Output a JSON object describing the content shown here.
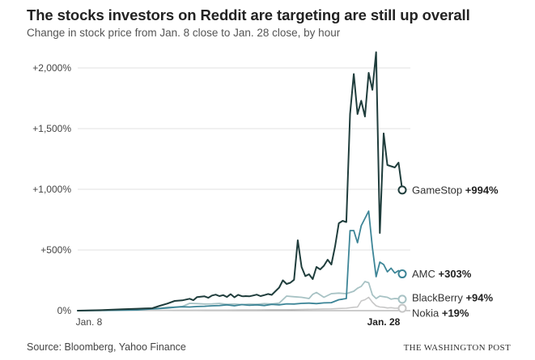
{
  "chart_data": {
    "type": "line",
    "title": "The stocks investors on Reddit are targeting are still up overall",
    "subtitle": "Change in stock price from Jan. 8 close to Jan. 28 close, by hour",
    "xlabel": "",
    "ylabel": "",
    "x_ticks": [
      "Jan. 8",
      "Jan. 28"
    ],
    "ylim": [
      0,
      2150
    ],
    "y_ticks": [
      {
        "value": 0,
        "label": "0%"
      },
      {
        "value": 500,
        "label": "+500%"
      },
      {
        "value": 1000,
        "label": "+1,000%"
      },
      {
        "value": 1500,
        "label": "+1,500%"
      },
      {
        "value": 2000,
        "label": "+2,000%"
      }
    ],
    "x": [
      0,
      6,
      12,
      16,
      18,
      20,
      22,
      24,
      26,
      28,
      30,
      31,
      32,
      34,
      35,
      36,
      37,
      38,
      39,
      40,
      41,
      42,
      43,
      44,
      44.5,
      45,
      46,
      47,
      48,
      49,
      50,
      51,
      52,
      53,
      54,
      55,
      56,
      57,
      58,
      59,
      60,
      61,
      62,
      63,
      64,
      65,
      66,
      67,
      68,
      69,
      70,
      71,
      72,
      73,
      74,
      75,
      76,
      77,
      78,
      79,
      80,
      81,
      82
    ],
    "series": [
      {
        "name": "GameStop",
        "end_label": "+994%",
        "color": "#1f3d3c",
        "width": 2,
        "values": [
          0,
          4,
          12,
          16,
          18,
          20,
          40,
          58,
          80,
          85,
          98,
          86,
          112,
          118,
          106,
          125,
          132,
          120,
          128,
          113,
          136,
          110,
          131,
          119,
          118,
          120,
          118,
          125,
          132,
          120,
          128,
          137,
          130,
          160,
          190,
          250,
          220,
          230,
          255,
          580,
          360,
          285,
          300,
          260,
          360,
          340,
          370,
          420,
          380,
          530,
          720,
          740,
          730,
          1620,
          1950,
          1620,
          1730,
          1600,
          1960,
          1820,
          2130,
          640,
          1460
        ]
      },
      {
        "name": "GameStop-late",
        "color": "#1f3d3c",
        "width": 2,
        "x": [
          82,
          83,
          84,
          85,
          86,
          87
        ],
        "values": [
          1460,
          1200,
          1190,
          1180,
          1220,
          994
        ]
      },
      {
        "name": "AMC",
        "end_label": "+303%",
        "color": "#3d8597",
        "width": 1.8,
        "x": [
          0,
          6,
          12,
          16,
          18,
          20,
          22,
          24,
          26,
          28,
          30,
          32,
          34,
          36,
          38,
          40,
          42,
          44,
          46,
          48,
          50,
          52,
          54,
          56,
          58,
          60,
          62,
          64,
          66,
          68,
          70,
          71,
          72,
          73,
          74,
          75,
          76,
          77,
          78,
          79,
          80,
          81,
          82,
          83,
          84,
          85,
          86,
          87
        ],
        "values": [
          0,
          2,
          4,
          6,
          10,
          14,
          18,
          22,
          28,
          32,
          30,
          34,
          36,
          40,
          42,
          48,
          40,
          50,
          44,
          48,
          42,
          52,
          48,
          56,
          55,
          60,
          62,
          58,
          64,
          66,
          90,
          95,
          100,
          660,
          660,
          560,
          700,
          760,
          820,
          520,
          280,
          400,
          380,
          320,
          350,
          310,
          330,
          303
        ]
      },
      {
        "name": "BlackBerry",
        "end_label": "+94%",
        "color": "#a7c2c4",
        "width": 1.8,
        "x": [
          0,
          6,
          12,
          16,
          18,
          20,
          22,
          24,
          26,
          28,
          30,
          32,
          34,
          36,
          38,
          40,
          42,
          44,
          46,
          48,
          50,
          52,
          54,
          56,
          58,
          60,
          62,
          63,
          64,
          66,
          68,
          70,
          72,
          73,
          74,
          75,
          76,
          77,
          78,
          79,
          80,
          81,
          82,
          83,
          84,
          85,
          86,
          87
        ],
        "values": [
          0,
          2,
          5,
          8,
          12,
          16,
          20,
          28,
          30,
          34,
          60,
          58,
          55,
          56,
          60,
          52,
          55,
          50,
          54,
          52,
          58,
          55,
          62,
          120,
          115,
          110,
          100,
          135,
          150,
          110,
          140,
          145,
          140,
          150,
          160,
          185,
          200,
          240,
          230,
          130,
          100,
          120,
          115,
          110,
          95,
          100,
          98,
          94
        ]
      },
      {
        "name": "Nokia",
        "end_label": "+19%",
        "color": "#c7c7c7",
        "width": 1.6,
        "x": [
          0,
          6,
          12,
          16,
          20,
          24,
          28,
          32,
          36,
          40,
          44,
          48,
          52,
          56,
          60,
          64,
          66,
          68,
          70,
          72,
          74,
          75,
          76,
          77,
          78,
          79,
          80,
          81,
          82,
          83,
          84,
          85,
          86,
          87
        ],
        "values": [
          0,
          1,
          2,
          2,
          3,
          3,
          4,
          4,
          5,
          5,
          6,
          6,
          8,
          8,
          10,
          12,
          14,
          15,
          18,
          20,
          28,
          30,
          80,
          90,
          110,
          70,
          40,
          30,
          28,
          22,
          25,
          20,
          21,
          19
        ]
      }
    ]
  },
  "footer": {
    "source": "Source: Bloomberg, Yahoo Finance",
    "publisher": "THE WASHINGTON POST"
  }
}
